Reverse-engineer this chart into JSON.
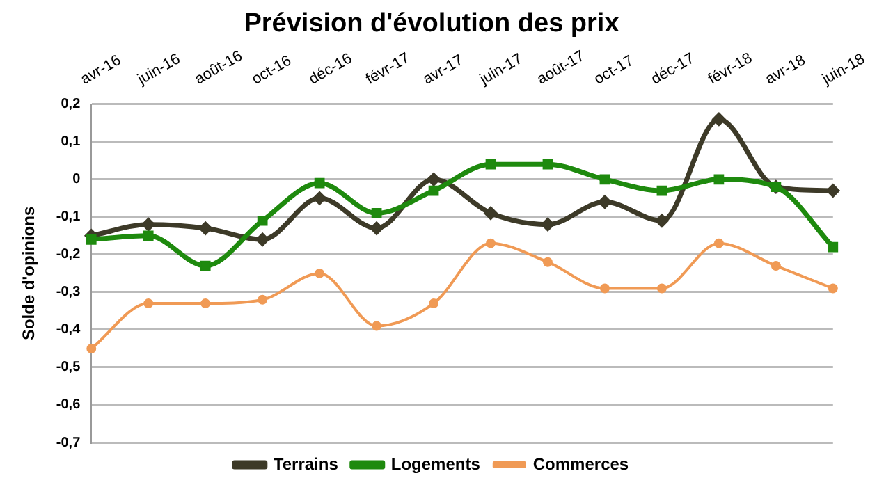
{
  "chart_data": {
    "type": "line",
    "title": "Prévision d'évolution des prix",
    "ylabel": "Solde d'opinions",
    "categories": [
      "avr-16",
      "juin-16",
      "août-16",
      "oct-16",
      "déc-16",
      "févr-17",
      "avr-17",
      "juin-17",
      "août-17",
      "oct-17",
      "déc-17",
      "févr-18",
      "avr-18",
      "juin-18"
    ],
    "series": [
      {
        "name": "Terrains",
        "color": "#3d3a28",
        "marker": "diamond",
        "values": [
          -0.15,
          -0.12,
          -0.13,
          -0.16,
          -0.05,
          -0.13,
          0,
          -0.09,
          -0.12,
          -0.06,
          -0.11,
          0.16,
          -0.02,
          -0.03
        ]
      },
      {
        "name": "Logements",
        "color": "#1e8a0e",
        "marker": "square",
        "values": [
          -0.16,
          -0.15,
          -0.23,
          -0.11,
          -0.01,
          -0.09,
          -0.03,
          0.04,
          0.04,
          0,
          -0.03,
          0,
          -0.02,
          -0.18
        ]
      },
      {
        "name": "Commerces",
        "color": "#f09a55",
        "marker": "circle",
        "values": [
          -0.45,
          -0.33,
          -0.33,
          -0.32,
          -0.25,
          -0.39,
          -0.33,
          -0.17,
          -0.22,
          -0.29,
          -0.29,
          -0.17,
          -0.23,
          -0.29
        ]
      }
    ],
    "ylim": [
      -0.7,
      0.2
    ],
    "yticks": [
      {
        "value": 0.2,
        "label": "0,2"
      },
      {
        "value": 0.1,
        "label": "0,1"
      },
      {
        "value": 0,
        "label": "0"
      },
      {
        "value": -0.1,
        "label": "-0,1"
      },
      {
        "value": -0.2,
        "label": "-0,2"
      },
      {
        "value": -0.3,
        "label": "-0,3"
      },
      {
        "value": -0.4,
        "label": "-0,4"
      },
      {
        "value": -0.5,
        "label": "-0,5"
      },
      {
        "value": -0.6,
        "label": "-0,6"
      },
      {
        "value": -0.7,
        "label": "-0,7"
      }
    ],
    "grid": "y",
    "legend": "bottom"
  }
}
